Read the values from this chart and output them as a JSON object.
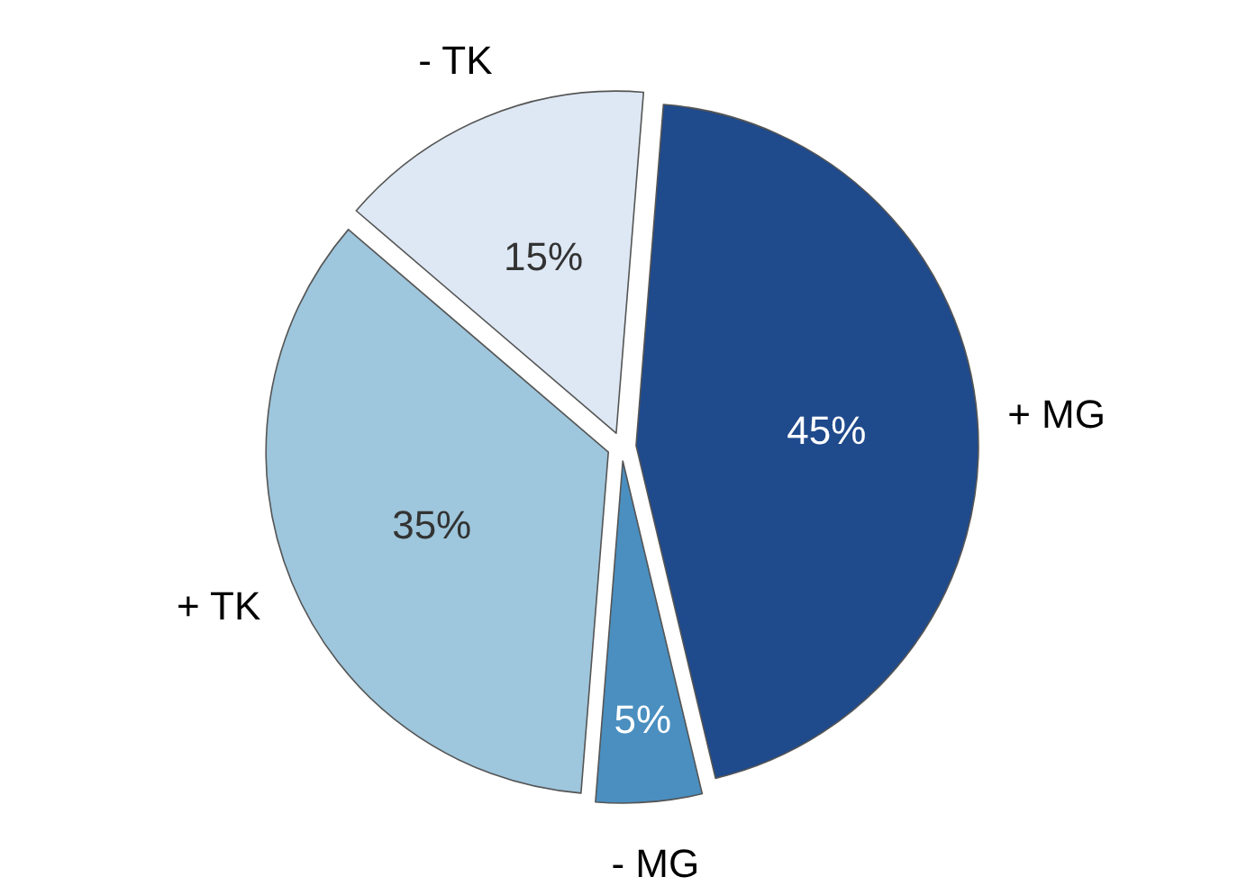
{
  "chart_data": {
    "type": "pie",
    "categories": [
      "+ MG",
      "- MG",
      "+ TK",
      "- TK"
    ],
    "values": [
      45,
      5,
      35,
      15
    ],
    "colors": [
      "#1f4a8c",
      "#4a8fc0",
      "#9ec6dc",
      "#dde8f4"
    ],
    "value_labels": [
      "45%",
      "5%",
      "35%",
      "15%"
    ]
  }
}
